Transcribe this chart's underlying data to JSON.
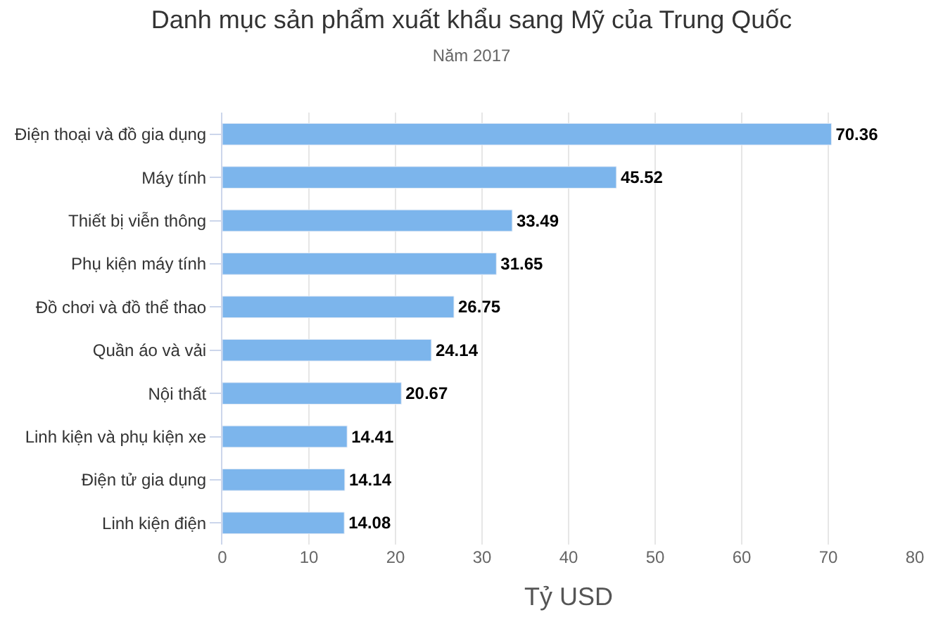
{
  "chart_data": {
    "type": "bar",
    "orientation": "horizontal",
    "title": "Danh mục sản phẩm xuất khẩu sang Mỹ của Trung Quốc",
    "subtitle": "Năm 2017",
    "xlabel": "Tỷ USD",
    "categories": [
      "Điện thoại và đồ gia dụng",
      "Máy tính",
      "Thiết bị viễn thông",
      "Phụ kiện máy tính",
      "Đồ chơi và đồ thể thao",
      "Quần áo và vải",
      "Nội thất",
      "Linh kiện và phụ kiện xe",
      "Điện tử gia dụng",
      "Linh kiện điện"
    ],
    "values": [
      70.36,
      45.52,
      33.49,
      31.65,
      26.75,
      24.14,
      20.67,
      14.41,
      14.14,
      14.08
    ],
    "color": "#7cb5ec",
    "xlim": [
      0,
      80
    ],
    "xticks": [
      0,
      10,
      20,
      30,
      40,
      50,
      60,
      70,
      80
    ],
    "grid": "x",
    "data_labels": true,
    "legend": false
  }
}
